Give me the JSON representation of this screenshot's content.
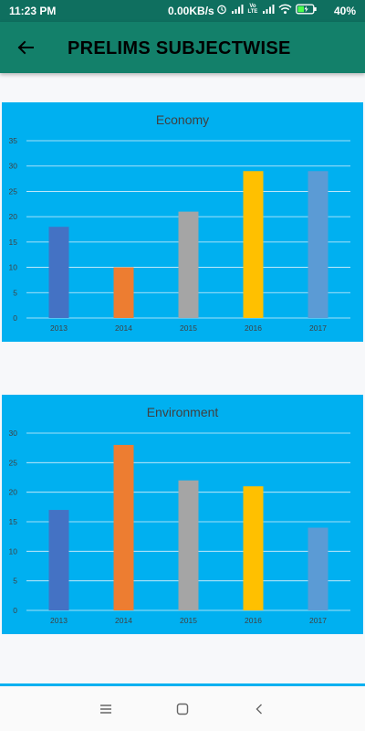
{
  "status_bar": {
    "time": "11:23 PM",
    "net_speed": "0.00KB/s",
    "network_label": "Vo LTE",
    "battery": "40%"
  },
  "app_bar": {
    "title": "PRELIMS SUBJECTWISE",
    "back_icon": "arrow-left-icon"
  },
  "chart_data": [
    {
      "type": "bar",
      "title": "Economy",
      "categories": [
        "2013",
        "2014",
        "2015",
        "2016",
        "2017"
      ],
      "values": [
        18,
        10,
        21,
        29,
        29
      ],
      "colors": [
        "#4472c4",
        "#ed7d31",
        "#a5a5a5",
        "#ffc000",
        "#5b9bd5"
      ],
      "ylim": [
        0,
        35
      ],
      "yticks": [
        0,
        5,
        10,
        15,
        20,
        25,
        30,
        35
      ],
      "grid": true,
      "background": "#00b0f0"
    },
    {
      "type": "bar",
      "title": "Environment",
      "categories": [
        "2013",
        "2014",
        "2015",
        "2016",
        "2017"
      ],
      "values": [
        17,
        28,
        22,
        21,
        14
      ],
      "colors": [
        "#4472c4",
        "#ed7d31",
        "#a5a5a5",
        "#ffc000",
        "#5b9bd5"
      ],
      "ylim": [
        0,
        30
      ],
      "yticks": [
        0,
        5,
        10,
        15,
        20,
        25,
        30
      ],
      "grid": true,
      "background": "#00b0f0"
    }
  ],
  "nav_bar": {
    "icons": [
      "menu-icon",
      "home-icon",
      "back-icon"
    ]
  }
}
